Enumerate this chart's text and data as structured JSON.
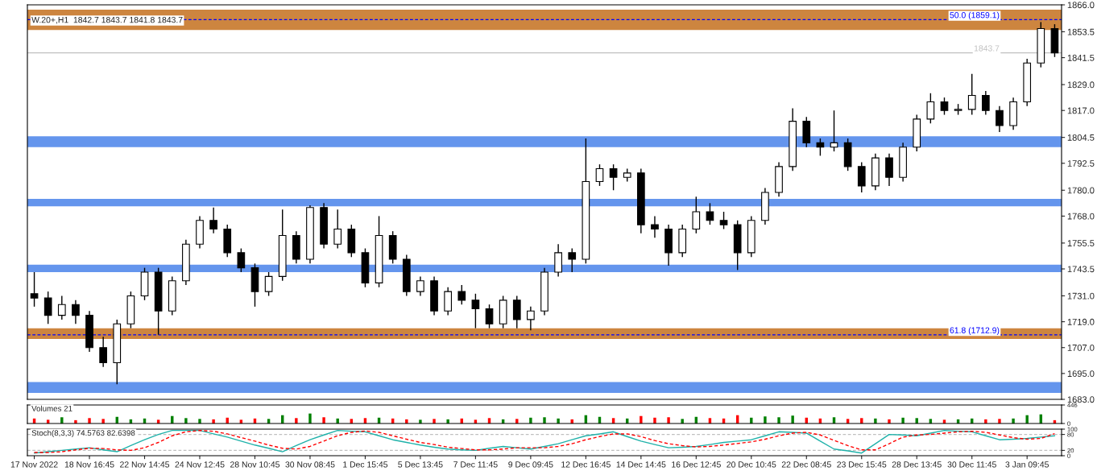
{
  "chart_data": [
    {
      "type": "candlestick",
      "title": "W.20+,H1  1842.7 1843.7 1841.8 1843.7",
      "tick_labels": "y",
      "grid": false,
      "legend": false,
      "categories": [
        null,
        null,
        null,
        null,
        null,
        null,
        null,
        null,
        null,
        null,
        null,
        null,
        null,
        null,
        null,
        null,
        null,
        null,
        null,
        null,
        null,
        null,
        null,
        null,
        null,
        null,
        null,
        null,
        null,
        null,
        null,
        null,
        null,
        null,
        null,
        null,
        null,
        null,
        null,
        null,
        null,
        null,
        null,
        null,
        null,
        null,
        null,
        null,
        null,
        null,
        null,
        null,
        null,
        null,
        null,
        null,
        null,
        null,
        null,
        null,
        null,
        null,
        null,
        null,
        null,
        null,
        null,
        null,
        null,
        null,
        null,
        null,
        null,
        null,
        null
      ],
      "ohlc": [
        [
          1732,
          1742,
          1726,
          1730
        ],
        [
          1730,
          1733,
          1718,
          1722
        ],
        [
          1722,
          1731,
          1720,
          1727
        ],
        [
          1727,
          1729,
          1718,
          1722
        ],
        [
          1722,
          1724,
          1705,
          1707
        ],
        [
          1707,
          1712,
          1698,
          1700
        ],
        [
          1700,
          1720,
          1690,
          1718
        ],
        [
          1718,
          1733,
          1716,
          1731
        ],
        [
          1731,
          1744,
          1729,
          1742
        ],
        [
          1742,
          1744,
          1713,
          1724
        ],
        [
          1724,
          1740,
          1722,
          1738
        ],
        [
          1738,
          1757,
          1736,
          1755
        ],
        [
          1755,
          1768,
          1753,
          1766
        ],
        [
          1766,
          1772,
          1760,
          1762
        ],
        [
          1762,
          1764,
          1749,
          1751
        ],
        [
          1751,
          1753,
          1742,
          1744
        ],
        [
          1744,
          1746,
          1726,
          1733
        ],
        [
          1733,
          1742,
          1731,
          1740
        ],
        [
          1740,
          1771,
          1738,
          1759
        ],
        [
          1759,
          1761,
          1746,
          1748
        ],
        [
          1748,
          1773,
          1746,
          1772
        ],
        [
          1772,
          1774,
          1753,
          1755
        ],
        [
          1755,
          1771,
          1753,
          1762
        ],
        [
          1762,
          1764,
          1749,
          1751
        ],
        [
          1751,
          1753,
          1735,
          1737
        ],
        [
          1737,
          1768,
          1735,
          1759
        ],
        [
          1759,
          1761,
          1746,
          1748
        ],
        [
          1748,
          1750,
          1731,
          1733
        ],
        [
          1733,
          1740,
          1731,
          1738
        ],
        [
          1738,
          1740,
          1722,
          1724
        ],
        [
          1724,
          1735,
          1722,
          1733
        ],
        [
          1733,
          1736,
          1727,
          1729
        ],
        [
          1729,
          1732,
          1716,
          1725
        ],
        [
          1725,
          1727,
          1716,
          1718
        ],
        [
          1718,
          1731,
          1716,
          1729
        ],
        [
          1729,
          1731,
          1716,
          1720
        ],
        [
          1720,
          1726,
          1715,
          1724
        ],
        [
          1724,
          1744,
          1722,
          1742
        ],
        [
          1742,
          1755,
          1740,
          1751
        ],
        [
          1751,
          1753,
          1742,
          1748
        ],
        [
          1748,
          1804,
          1746,
          1784
        ],
        [
          1784,
          1792,
          1782,
          1790
        ],
        [
          1790,
          1792,
          1780,
          1786
        ],
        [
          1786,
          1790,
          1784,
          1788
        ],
        [
          1788,
          1790,
          1760,
          1764
        ],
        [
          1764,
          1768,
          1758,
          1762
        ],
        [
          1762,
          1764,
          1745,
          1751
        ],
        [
          1751,
          1764,
          1749,
          1762
        ],
        [
          1762,
          1777,
          1760,
          1770
        ],
        [
          1770,
          1774,
          1764,
          1766
        ],
        [
          1766,
          1770,
          1762,
          1764
        ],
        [
          1764,
          1766,
          1743,
          1751
        ],
        [
          1751,
          1768,
          1749,
          1766
        ],
        [
          1766,
          1781,
          1764,
          1779
        ],
        [
          1779,
          1793,
          1777,
          1791
        ],
        [
          1791,
          1818,
          1789,
          1812
        ],
        [
          1812,
          1814,
          1800,
          1802
        ],
        [
          1802,
          1804,
          1796,
          1800
        ],
        [
          1800,
          1817,
          1798,
          1802
        ],
        [
          1802,
          1804,
          1789,
          1791
        ],
        [
          1791,
          1793,
          1779,
          1782
        ],
        [
          1782,
          1797,
          1780,
          1795
        ],
        [
          1795,
          1797,
          1782,
          1786
        ],
        [
          1786,
          1802,
          1784,
          1800
        ],
        [
          1800,
          1815,
          1798,
          1813
        ],
        [
          1813,
          1825,
          1811,
          1821
        ],
        [
          1821,
          1823,
          1815,
          1817
        ],
        [
          1817,
          1820,
          1815,
          1817.5
        ],
        [
          1817.5,
          1834,
          1815,
          1824
        ],
        [
          1824,
          1826,
          1815,
          1817
        ],
        [
          1817,
          1819,
          1807,
          1810
        ],
        [
          1810,
          1823,
          1808,
          1821
        ],
        [
          1821,
          1841,
          1819,
          1839
        ],
        [
          1839,
          1858,
          1837,
          1855
        ],
        [
          1855,
          1857,
          1841.8,
          1843.7
        ]
      ],
      "ylim": [
        1683,
        1866
      ],
      "yticks": [
        {
          "value": 1866,
          "label": "1866.0"
        },
        {
          "value": 1853.5,
          "label": "1853.5"
        },
        {
          "value": 1841.5,
          "label": "1841.5"
        },
        {
          "value": 1829,
          "label": "1829.0"
        },
        {
          "value": 1817,
          "label": "1817.0"
        },
        {
          "value": 1804.5,
          "label": "1804.5"
        },
        {
          "value": 1792.5,
          "label": "1792.5"
        },
        {
          "value": 1780,
          "label": "1780.0"
        },
        {
          "value": 1768,
          "label": "1768.0"
        },
        {
          "value": 1755.5,
          "label": "1755.5"
        },
        {
          "value": 1743.5,
          "label": "1743.5"
        },
        {
          "value": 1731,
          "label": "1731.0"
        },
        {
          "value": 1719,
          "label": "1719.0"
        },
        {
          "value": 1707,
          "label": "1707.0"
        },
        {
          "value": 1695,
          "label": "1695.0"
        },
        {
          "value": 1683,
          "label": "1683.0"
        }
      ],
      "bands": [
        {
          "axis": "y",
          "from": 1854.3,
          "to": 1863.8,
          "color": "#cd853f"
        },
        {
          "axis": "y",
          "from": 1800,
          "to": 1805,
          "color": "#6495ed"
        },
        {
          "axis": "y",
          "from": 1772.5,
          "to": 1776,
          "color": "#6495ed"
        },
        {
          "axis": "y",
          "from": 1742,
          "to": 1745.5,
          "color": "#6495ed"
        },
        {
          "axis": "y",
          "from": 1711,
          "to": 1716,
          "color": "#cd853f"
        },
        {
          "axis": "y",
          "from": 1686,
          "to": 1691,
          "color": "#6495ed"
        }
      ],
      "ref_lines": [
        {
          "axis": "y",
          "value": 1859.1,
          "label": "50.0 (1859.1)",
          "color": "#0000ff",
          "line_style": "dashed"
        },
        {
          "axis": "y",
          "value": 1712.9,
          "label": "61.8 (1712.9)",
          "color": "#0000ff",
          "line_style": "dashed"
        },
        {
          "axis": "y",
          "value": 1843.7,
          "label": "1843.7",
          "color": "#c0c0c0",
          "line_style": "solid"
        }
      ]
    },
    {
      "type": "bar",
      "title": "Volumes 21",
      "tick_labels": "y",
      "grid": false,
      "legend": false,
      "categories": [
        null,
        null,
        null,
        null,
        null,
        null,
        null,
        null,
        null,
        null,
        null,
        null,
        null,
        null,
        null,
        null,
        null,
        null,
        null,
        null,
        null,
        null,
        null,
        null,
        null,
        null,
        null,
        null,
        null,
        null,
        null,
        null,
        null,
        null,
        null,
        null,
        null,
        null,
        null,
        null,
        null,
        null,
        null,
        null,
        null,
        null,
        null,
        null,
        null,
        null,
        null,
        null,
        null,
        null,
        null,
        null,
        null,
        null,
        null,
        null,
        null,
        null,
        null,
        null,
        null,
        null,
        null,
        null,
        null,
        null,
        null,
        null,
        null,
        null,
        null
      ],
      "values": [
        120,
        90,
        150,
        80,
        130,
        110,
        160,
        100,
        120,
        90,
        180,
        130,
        110,
        100,
        140,
        90,
        120,
        110,
        200,
        130,
        240,
        150,
        120,
        110,
        130,
        140,
        120,
        100,
        90,
        110,
        100,
        120,
        90,
        130,
        100,
        110,
        140,
        150,
        120,
        100,
        200,
        160,
        130,
        120,
        180,
        140,
        150,
        110,
        160,
        130,
        120,
        200,
        140,
        170,
        150,
        190,
        140,
        120,
        150,
        110,
        130,
        120,
        100,
        140,
        130,
        110,
        90,
        100,
        120,
        100,
        110,
        120,
        200,
        220,
        80
      ],
      "colors": [
        "#ff0000",
        "#ff0000",
        "#008000",
        "#ff0000",
        "#ff0000",
        "#ff0000",
        "#008000",
        "#008000",
        "#008000",
        "#ff0000",
        "#008000",
        "#008000",
        "#008000",
        "#ff0000",
        "#ff0000",
        "#ff0000",
        "#ff0000",
        "#008000",
        "#008000",
        "#ff0000",
        "#008000",
        "#ff0000",
        "#008000",
        "#ff0000",
        "#ff0000",
        "#008000",
        "#ff0000",
        "#ff0000",
        "#008000",
        "#ff0000",
        "#008000",
        "#ff0000",
        "#ff0000",
        "#ff0000",
        "#008000",
        "#ff0000",
        "#008000",
        "#008000",
        "#008000",
        "#ff0000",
        "#008000",
        "#008000",
        "#ff0000",
        "#008000",
        "#ff0000",
        "#ff0000",
        "#ff0000",
        "#008000",
        "#008000",
        "#ff0000",
        "#ff0000",
        "#ff0000",
        "#008000",
        "#008000",
        "#008000",
        "#008000",
        "#ff0000",
        "#ff0000",
        "#008000",
        "#ff0000",
        "#ff0000",
        "#008000",
        "#ff0000",
        "#008000",
        "#008000",
        "#008000",
        "#ff0000",
        "#008000",
        "#008000",
        "#ff0000",
        "#ff0000",
        "#008000",
        "#008000",
        "#008000",
        "#ff0000"
      ],
      "ylim": [
        0,
        446
      ],
      "yticks": [
        0,
        446
      ]
    },
    {
      "type": "line",
      "title": "Stoch(8,3,3) 74.5763 82.6398",
      "grid": false,
      "legend": false,
      "categories": [
        "17 Nov 2022",
        null,
        null,
        null,
        "18 Nov 16:45",
        null,
        null,
        null,
        "22 Nov 14:45",
        null,
        null,
        null,
        "24 Nov 12:45",
        null,
        null,
        null,
        "28 Nov 10:45",
        null,
        null,
        null,
        "30 Nov 08:45",
        null,
        null,
        null,
        "1 Dec 15:45",
        null,
        null,
        null,
        "5 Dec 13:45",
        null,
        null,
        null,
        "7 Dec 11:45",
        null,
        null,
        null,
        "9 Dec 09:45",
        null,
        null,
        null,
        "12 Dec 16:45",
        null,
        null,
        null,
        "14 Dec 14:45",
        null,
        null,
        null,
        "16 Dec 12:45",
        null,
        null,
        null,
        "20 Dec 10:45",
        null,
        null,
        null,
        "22 Dec 08:45",
        null,
        null,
        null,
        "23 Dec 15:45",
        null,
        null,
        null,
        "28 Dec 13:45",
        null,
        null,
        null,
        "30 Dec 11:45",
        null,
        null,
        null,
        "3 Jan 09:45",
        null,
        null
      ],
      "series": [
        {
          "color": "#20b2aa",
          "line_style": "solid",
          "values": [
            10,
            15,
            20,
            25,
            30,
            22,
            15,
            38,
            60,
            80,
            95,
            95,
            95,
            82,
            70,
            55,
            40,
            28,
            15,
            38,
            60,
            78,
            95,
            92,
            90,
            75,
            60,
            50,
            40,
            32,
            25,
            22,
            20,
            28,
            35,
            30,
            25,
            35,
            45,
            60,
            75,
            82,
            90,
            72,
            55,
            42,
            30,
            32,
            35,
            42,
            50,
            55,
            60,
            75,
            90,
            88,
            85,
            55,
            25,
            18,
            10,
            45,
            80,
            78,
            75,
            85,
            95,
            92,
            90,
            75,
            60,
            62,
            65,
            70,
            75
          ]
        },
        {
          "color": "#ff0000",
          "line_style": "dashed",
          "values": [
            12,
            12,
            15,
            22,
            28,
            27,
            22,
            20,
            30,
            50,
            75,
            90,
            95,
            92,
            82,
            68,
            55,
            40,
            28,
            25,
            35,
            55,
            75,
            88,
            93,
            88,
            75,
            62,
            50,
            42,
            32,
            27,
            22,
            22,
            25,
            30,
            30,
            30,
            35,
            45,
            60,
            72,
            82,
            82,
            72,
            57,
            45,
            38,
            33,
            35,
            40,
            46,
            52,
            62,
            75,
            85,
            88,
            78,
            58,
            38,
            22,
            22,
            45,
            70,
            78,
            80,
            85,
            90,
            92,
            88,
            78,
            68,
            62,
            65,
            83
          ]
        }
      ],
      "ylim": [
        0,
        100
      ],
      "yticks": [
        0,
        20,
        80,
        100
      ],
      "ref_lines": [
        {
          "axis": "y",
          "value": 20,
          "color": "#c0c0c0",
          "line_style": "dashed"
        },
        {
          "axis": "y",
          "value": 80,
          "color": "#c0c0c0",
          "line_style": "dashed"
        }
      ]
    }
  ]
}
